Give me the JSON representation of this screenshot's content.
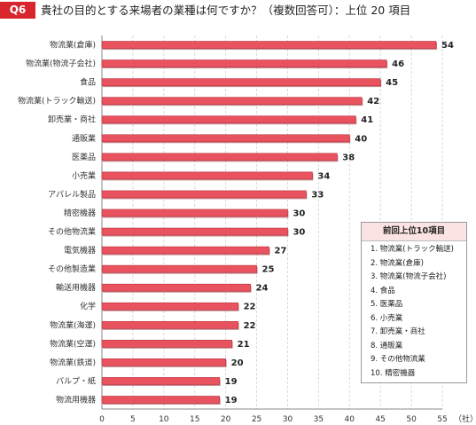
{
  "header": {
    "badge": "Q6",
    "title": "貴社の目的とする来場者の業種は何ですか？（複数回答可）：上位 20 項目"
  },
  "chart_data": {
    "type": "bar",
    "orientation": "horizontal",
    "categories": [
      "物流業(倉庫)",
      "物流業(物流子会社)",
      "食品",
      "物流業(トラック輸送)",
      "卸売業・商社",
      "通販業",
      "医薬品",
      "小売業",
      "アパレル製品",
      "精密機器",
      "その他物流業",
      "電気機器",
      "その他製造業",
      "輸送用機器",
      "化学",
      "物流業(海運)",
      "物流業(空運)",
      "物流業(鉄道)",
      "パルプ・紙",
      "物流用機器"
    ],
    "values": [
      54,
      46,
      45,
      42,
      41,
      40,
      38,
      34,
      33,
      30,
      30,
      27,
      25,
      24,
      22,
      22,
      21,
      20,
      19,
      19
    ],
    "xlim": [
      0,
      55
    ],
    "xticks": [
      0,
      5,
      10,
      15,
      20,
      25,
      30,
      35,
      40,
      45,
      50,
      55
    ],
    "unit": "（社）",
    "bar_color": "#e8535f",
    "grid": true
  },
  "legend": {
    "title": "前回上位10項目",
    "items": [
      "1. 物流業(トラック輸送)",
      "2. 物流業(倉庫)",
      "3. 物流業(物流子会社)",
      "4. 食品",
      "5. 医薬品",
      "6. 小売業",
      "7. 卸売業・商社",
      "8. 通販業",
      "9. その他物流業",
      "10. 精密機器"
    ]
  }
}
